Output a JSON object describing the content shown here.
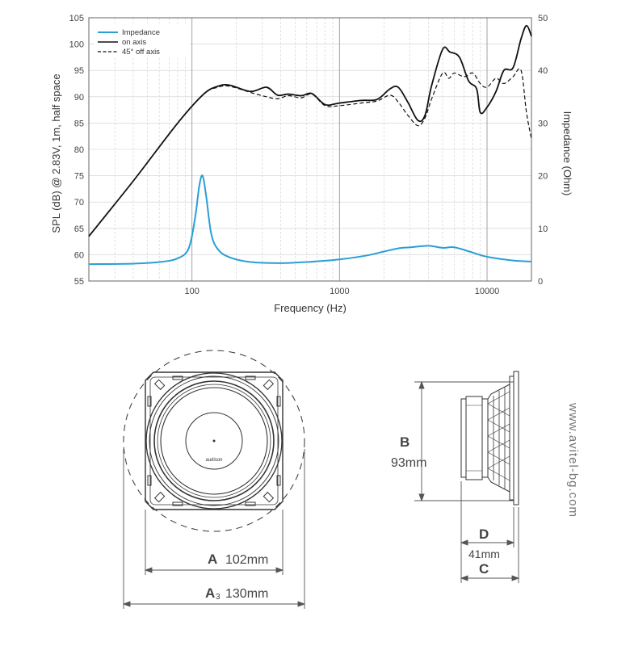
{
  "chart_data": {
    "type": "line",
    "title": "",
    "xlabel": "Frequency (Hz)",
    "ylabel": "SPL (dB) @ 2.83V, 1m, half space",
    "y2label": "Impedance (Ohm)",
    "xscale": "log",
    "xlim": [
      20,
      20000
    ],
    "ylim": [
      55,
      105
    ],
    "y2lim": [
      0,
      50
    ],
    "x_ticks": [
      100,
      1000,
      10000
    ],
    "y_ticks": [
      55,
      60,
      65,
      70,
      75,
      80,
      85,
      90,
      95,
      100,
      105
    ],
    "y2_ticks": [
      0,
      10,
      20,
      30,
      40,
      50
    ],
    "grid": true,
    "legend_position": "top-left",
    "series": [
      {
        "name": "Impedance",
        "axis": "right",
        "color": "#2a9fd6",
        "style": "solid",
        "x": [
          20,
          40,
          60,
          80,
          95,
          105,
          112,
          118,
          125,
          135,
          150,
          180,
          250,
          400,
          600,
          1000,
          1500,
          2000,
          2500,
          3000,
          4000,
          5000,
          6000,
          8000,
          10000,
          15000,
          20000
        ],
        "y": [
          3.2,
          3.3,
          3.6,
          4.3,
          6.2,
          12,
          18,
          20,
          16,
          9,
          6,
          4.5,
          3.6,
          3.4,
          3.6,
          4.1,
          4.8,
          5.6,
          6.2,
          6.4,
          6.7,
          6.3,
          6.4,
          5.4,
          4.6,
          3.9,
          3.7
        ]
      },
      {
        "name": "on axis",
        "axis": "left",
        "color": "#111111",
        "style": "solid",
        "x": [
          20,
          40,
          80,
          120,
          150,
          180,
          250,
          320,
          380,
          450,
          550,
          650,
          800,
          1000,
          1400,
          1800,
          2200,
          2500,
          2900,
          3400,
          3800,
          4200,
          5000,
          5600,
          6500,
          7500,
          8500,
          9000,
          10000,
          11500,
          13000,
          15000,
          17000,
          18500,
          20000
        ],
        "y": [
          63.5,
          74,
          85,
          90.5,
          92,
          92.2,
          91,
          91.8,
          90.3,
          90.5,
          90.2,
          90.6,
          88.5,
          88.8,
          89.3,
          89.5,
          91.5,
          91.8,
          89,
          85.5,
          86.5,
          92,
          99,
          98.5,
          97.5,
          93,
          91.5,
          87,
          88,
          91,
          95,
          95.5,
          101,
          103.5,
          101.5
        ]
      },
      {
        "name": "45° off axis",
        "axis": "left",
        "color": "#111111",
        "style": "dashed",
        "x": [
          20,
          40,
          80,
          120,
          150,
          180,
          250,
          320,
          380,
          450,
          550,
          650,
          800,
          1000,
          1400,
          1800,
          2200,
          2500,
          2900,
          3400,
          3800,
          4200,
          5000,
          5500,
          6000,
          7000,
          8000,
          9000,
          10000,
          11500,
          13000,
          15000,
          17000,
          18500,
          20000
        ],
        "y": [
          63.5,
          74,
          85,
          90.5,
          91.8,
          92,
          90.8,
          90,
          89.6,
          90.2,
          89.8,
          90.5,
          88.3,
          88.3,
          88.8,
          89.2,
          90.3,
          89,
          86.5,
          84.5,
          86,
          89.5,
          94.5,
          93.5,
          94.5,
          93.8,
          94.5,
          92.5,
          91.8,
          93.5,
          92.5,
          93.8,
          95,
          87,
          82
        ]
      }
    ]
  },
  "drawing": {
    "brand_text": "audison",
    "labels": {
      "a_letter": "A",
      "a_value": "102mm",
      "a3_letter": "A",
      "a3_subscript": "3",
      "a3_value": "130mm",
      "b_letter": "B",
      "b_value": "93mm",
      "d_letter": "D",
      "d_value": "41mm",
      "c_letter": "C"
    },
    "website": "www.avitel-bg.com"
  }
}
